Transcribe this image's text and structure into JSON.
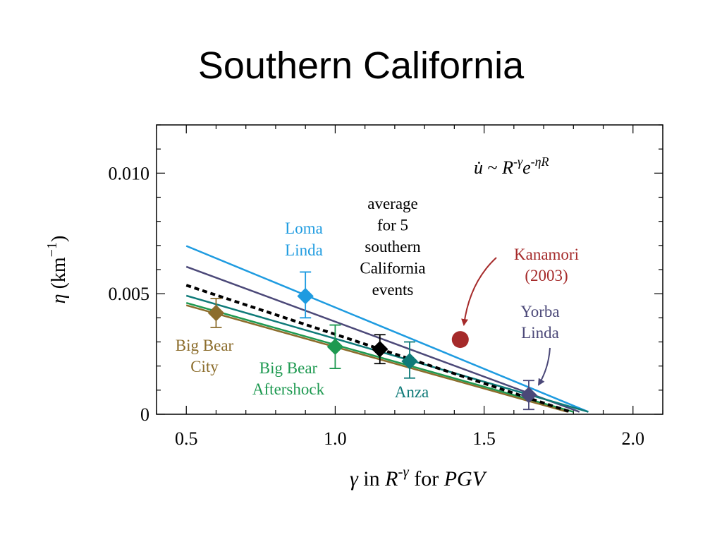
{
  "slide": {
    "title": "Southern California"
  },
  "chart_data": {
    "type": "line",
    "title": "",
    "xlabel_parts": [
      {
        "t": "γ",
        "style": "italic"
      },
      {
        "t": " in ",
        "style": "normal"
      },
      {
        "t": "R",
        "style": "italic"
      },
      {
        "t": "-γ",
        "style": "italic",
        "sup": true
      },
      {
        "t": " for ",
        "style": "normal"
      },
      {
        "t": "PGV",
        "style": "italic"
      }
    ],
    "ylabel_parts": [
      {
        "t": "η",
        "style": "italic"
      },
      {
        "t": "  (km",
        "style": "normal"
      },
      {
        "t": "−1",
        "style": "normal",
        "sup": true
      },
      {
        "t": ")",
        "style": "normal"
      }
    ],
    "xlim": [
      0.4,
      2.1
    ],
    "ylim": [
      0,
      0.012
    ],
    "xticks": [
      {
        "value": 0.5,
        "label": "0.5"
      },
      {
        "value": 1.0,
        "label": "1.0"
      },
      {
        "value": 1.5,
        "label": "1.5"
      },
      {
        "value": 2.0,
        "label": "2.0"
      }
    ],
    "yticks": [
      {
        "value": 0,
        "label": "0"
      },
      {
        "value": 0.005,
        "label": "0.005"
      },
      {
        "value": 0.01,
        "label": "0.010"
      }
    ],
    "grid": false,
    "equation_parts": [
      {
        "t": "u̇",
        "style": "italic"
      },
      {
        "t": " ~ ",
        "style": "normal"
      },
      {
        "t": "R",
        "style": "italic"
      },
      {
        "t": "-γ",
        "style": "italic",
        "sup": true
      },
      {
        "t": "e",
        "style": "italic"
      },
      {
        "t": "-ηR",
        "style": "italic",
        "sup": true
      }
    ],
    "series": [
      {
        "key": "loma",
        "color": "#1e9be0",
        "dashed": false,
        "line": [
          [
            0.5,
            0.00698
          ],
          [
            1.85,
            0.0001
          ]
        ],
        "point": {
          "x": 0.9,
          "y": 0.0049,
          "err": [
            0.004,
            0.0059
          ]
        },
        "labels": [
          "Loma",
          "Linda"
        ]
      },
      {
        "key": "yorba",
        "color": "#4b4878",
        "dashed": false,
        "line": [
          [
            0.5,
            0.00612
          ],
          [
            1.82,
            0.0001
          ]
        ],
        "point": {
          "x": 1.65,
          "y": 0.0008,
          "err": [
            0.0002,
            0.0014
          ]
        },
        "labels": [
          "Yorba",
          "Linda"
        ]
      },
      {
        "key": "anza",
        "color": "#0e7a78",
        "dashed": false,
        "line": [
          [
            0.5,
            0.00492
          ],
          [
            1.85,
            0.0001
          ]
        ],
        "point": {
          "x": 1.25,
          "y": 0.0022,
          "err": [
            0.0015,
            0.003
          ]
        },
        "labels": [
          "Anza"
        ]
      },
      {
        "key": "bba",
        "color": "#1d9950",
        "dashed": false,
        "line": [
          [
            0.5,
            0.00462
          ],
          [
            1.8,
            0.0001
          ]
        ],
        "point": {
          "x": 1.0,
          "y": 0.0028,
          "err": [
            0.0019,
            0.0037
          ]
        },
        "labels": [
          "Big Bear",
          "Aftershock"
        ]
      },
      {
        "key": "bbc",
        "color": "#8c6d2c",
        "dashed": false,
        "line": [
          [
            0.5,
            0.00452
          ],
          [
            1.78,
            0.0001
          ]
        ],
        "point": {
          "x": 0.6,
          "y": 0.0042,
          "err": [
            0.0036,
            0.0048
          ]
        },
        "labels": [
          "Big Bear",
          "City"
        ]
      },
      {
        "key": "avg",
        "color": "#000000",
        "dashed": true,
        "line": [
          [
            0.5,
            0.00535
          ],
          [
            1.79,
            0.0001
          ]
        ],
        "point": {
          "x": 1.15,
          "y": 0.0027,
          "err": [
            0.0021,
            0.0033
          ]
        },
        "labels": [
          "average",
          "for 5",
          "southern",
          "California",
          "events"
        ]
      }
    ],
    "kanamori": {
      "x": 1.42,
      "y": 0.0031,
      "color": "#a52a2a",
      "labels": [
        "Kanamori",
        "(2003)"
      ]
    }
  }
}
